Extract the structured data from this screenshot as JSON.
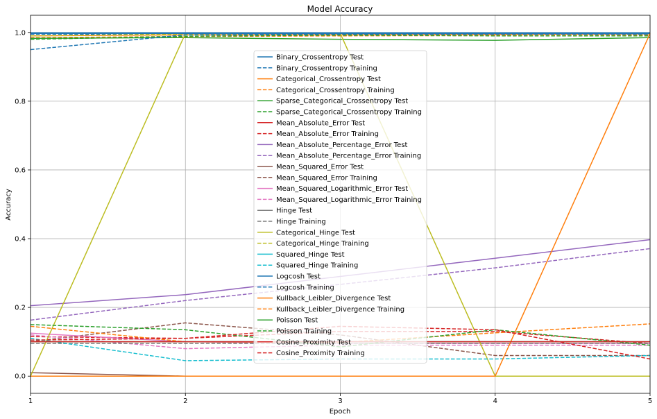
{
  "chart_data": {
    "type": "line",
    "title": "Model Accuracy",
    "xlabel": "Epoch",
    "ylabel": "Accuracy",
    "xlim": [
      1,
      5
    ],
    "ylim": [
      -0.05,
      1.05
    ],
    "xticks": [
      "1",
      "2",
      "3",
      "4",
      "5"
    ],
    "yticks": [
      "0.0",
      "0.2",
      "0.4",
      "0.6",
      "0.8",
      "1.0"
    ],
    "grid": true,
    "legend_position": "upper-center",
    "x": [
      1,
      2,
      3,
      4,
      5
    ],
    "series": [
      {
        "name": "Binary_Crossentropy Test",
        "color": "#1f77b4",
        "style": "solid",
        "values": [
          0.999,
          0.999,
          0.999,
          0.999,
          0.999
        ]
      },
      {
        "name": "Binary_Crossentropy Training",
        "color": "#1f77b4",
        "style": "dashed",
        "values": [
          0.995,
          0.995,
          0.995,
          0.995,
          0.995
        ]
      },
      {
        "name": "Categorical_Crossentropy Test",
        "color": "#ff7f0e",
        "style": "solid",
        "values": [
          0.99,
          0.993,
          0.993,
          0.994,
          0.996
        ]
      },
      {
        "name": "Categorical_Crossentropy Training",
        "color": "#ff7f0e",
        "style": "dashed",
        "values": [
          0.985,
          0.988,
          0.99,
          0.991,
          0.992
        ]
      },
      {
        "name": "Sparse_Categorical_Crossentropy Test",
        "color": "#2ca02c",
        "style": "solid",
        "values": [
          0.983,
          0.985,
          0.98,
          0.977,
          0.985
        ]
      },
      {
        "name": "Sparse_Categorical_Crossentropy Training",
        "color": "#2ca02c",
        "style": "dashed",
        "values": [
          0.98,
          0.989,
          0.992,
          0.99,
          0.99
        ]
      },
      {
        "name": "Mean_Absolute_Error Test",
        "color": "#d62728",
        "style": "solid",
        "values": [
          0.0,
          0.0,
          0.0,
          0.0,
          0.0
        ]
      },
      {
        "name": "Mean_Absolute_Error Training",
        "color": "#d62728",
        "style": "dashed",
        "values": [
          0.115,
          0.11,
          0.13,
          0.13,
          0.095
        ]
      },
      {
        "name": "Mean_Absolute_Percentage_Error Test",
        "color": "#9467bd",
        "style": "solid",
        "values": [
          0.205,
          0.237,
          0.29,
          0.343,
          0.397
        ]
      },
      {
        "name": "Mean_Absolute_Percentage_Error Training",
        "color": "#9467bd",
        "style": "dashed",
        "values": [
          0.163,
          0.22,
          0.267,
          0.315,
          0.371
        ]
      },
      {
        "name": "Mean_Squared_Error Test",
        "color": "#8c564b",
        "style": "solid",
        "values": [
          0.01,
          0.0,
          0.0,
          0.0,
          0.0
        ]
      },
      {
        "name": "Mean_Squared_Error Training",
        "color": "#8c564b",
        "style": "dashed",
        "values": [
          0.1,
          0.155,
          0.12,
          0.06,
          0.06
        ]
      },
      {
        "name": "Mean_Squared_Logarithmic_Error Test",
        "color": "#e377c2",
        "style": "solid",
        "values": [
          0.125,
          0.1,
          0.095,
          0.095,
          0.095
        ]
      },
      {
        "name": "Mean_Squared_Logarithmic_Error Training",
        "color": "#e377c2",
        "style": "dashed",
        "values": [
          0.12,
          0.08,
          0.09,
          0.09,
          0.09
        ]
      },
      {
        "name": "Hinge Test",
        "color": "#7f7f7f",
        "style": "solid",
        "values": [
          0.1,
          0.1,
          0.1,
          0.1,
          0.1
        ]
      },
      {
        "name": "Hinge Training",
        "color": "#7f7f7f",
        "style": "dashed",
        "values": [
          0.095,
          0.095,
          0.095,
          0.095,
          0.095
        ]
      },
      {
        "name": "Categorical_Hinge Test",
        "color": "#bcbd22",
        "style": "solid",
        "values": [
          0.0,
          0.997,
          0.997,
          0.0,
          0.0
        ]
      },
      {
        "name": "Categorical_Hinge Training",
        "color": "#bcbd22",
        "style": "dashed",
        "values": [
          0.99,
          0.995,
          0.996,
          0.996,
          0.996
        ]
      },
      {
        "name": "Squared_Hinge Test",
        "color": "#17becf",
        "style": "solid",
        "values": [
          0.1,
          0.1,
          0.1,
          0.1,
          0.1
        ]
      },
      {
        "name": "Squared_Hinge Training",
        "color": "#17becf",
        "style": "dashed",
        "values": [
          0.11,
          0.045,
          0.05,
          0.05,
          0.06
        ]
      },
      {
        "name": "Logcosh Test",
        "color": "#1f77b4",
        "style": "solid",
        "values": [
          0.997,
          0.997,
          0.997,
          0.997,
          0.997
        ]
      },
      {
        "name": "Logcosh Training",
        "color": "#1f77b4",
        "style": "dashed",
        "values": [
          0.95,
          0.993,
          0.995,
          0.995,
          0.995
        ]
      },
      {
        "name": "Kullback_Leibler_Divergence Test",
        "color": "#ff7f0e",
        "style": "solid",
        "values": [
          0.0,
          0.0,
          0.0,
          0.0,
          0.997
        ]
      },
      {
        "name": "Kullback_Leibler_Divergence Training",
        "color": "#ff7f0e",
        "style": "dashed",
        "values": [
          0.145,
          0.1,
          0.098,
          0.126,
          0.152
        ]
      },
      {
        "name": "Poisson Test",
        "color": "#2ca02c",
        "style": "solid",
        "values": [
          0.1,
          0.1,
          0.1,
          0.1,
          0.1
        ]
      },
      {
        "name": "Poisson Training",
        "color": "#2ca02c",
        "style": "dashed",
        "values": [
          0.15,
          0.135,
          0.085,
          0.135,
          0.09
        ]
      },
      {
        "name": "Cosine_Proximity Test",
        "color": "#d62728",
        "style": "solid",
        "values": [
          0.1,
          0.1,
          0.1,
          0.1,
          0.1
        ]
      },
      {
        "name": "Cosine_Proximity Training",
        "color": "#d62728",
        "style": "dashed",
        "values": [
          0.105,
          0.11,
          0.145,
          0.135,
          0.05
        ]
      }
    ]
  }
}
